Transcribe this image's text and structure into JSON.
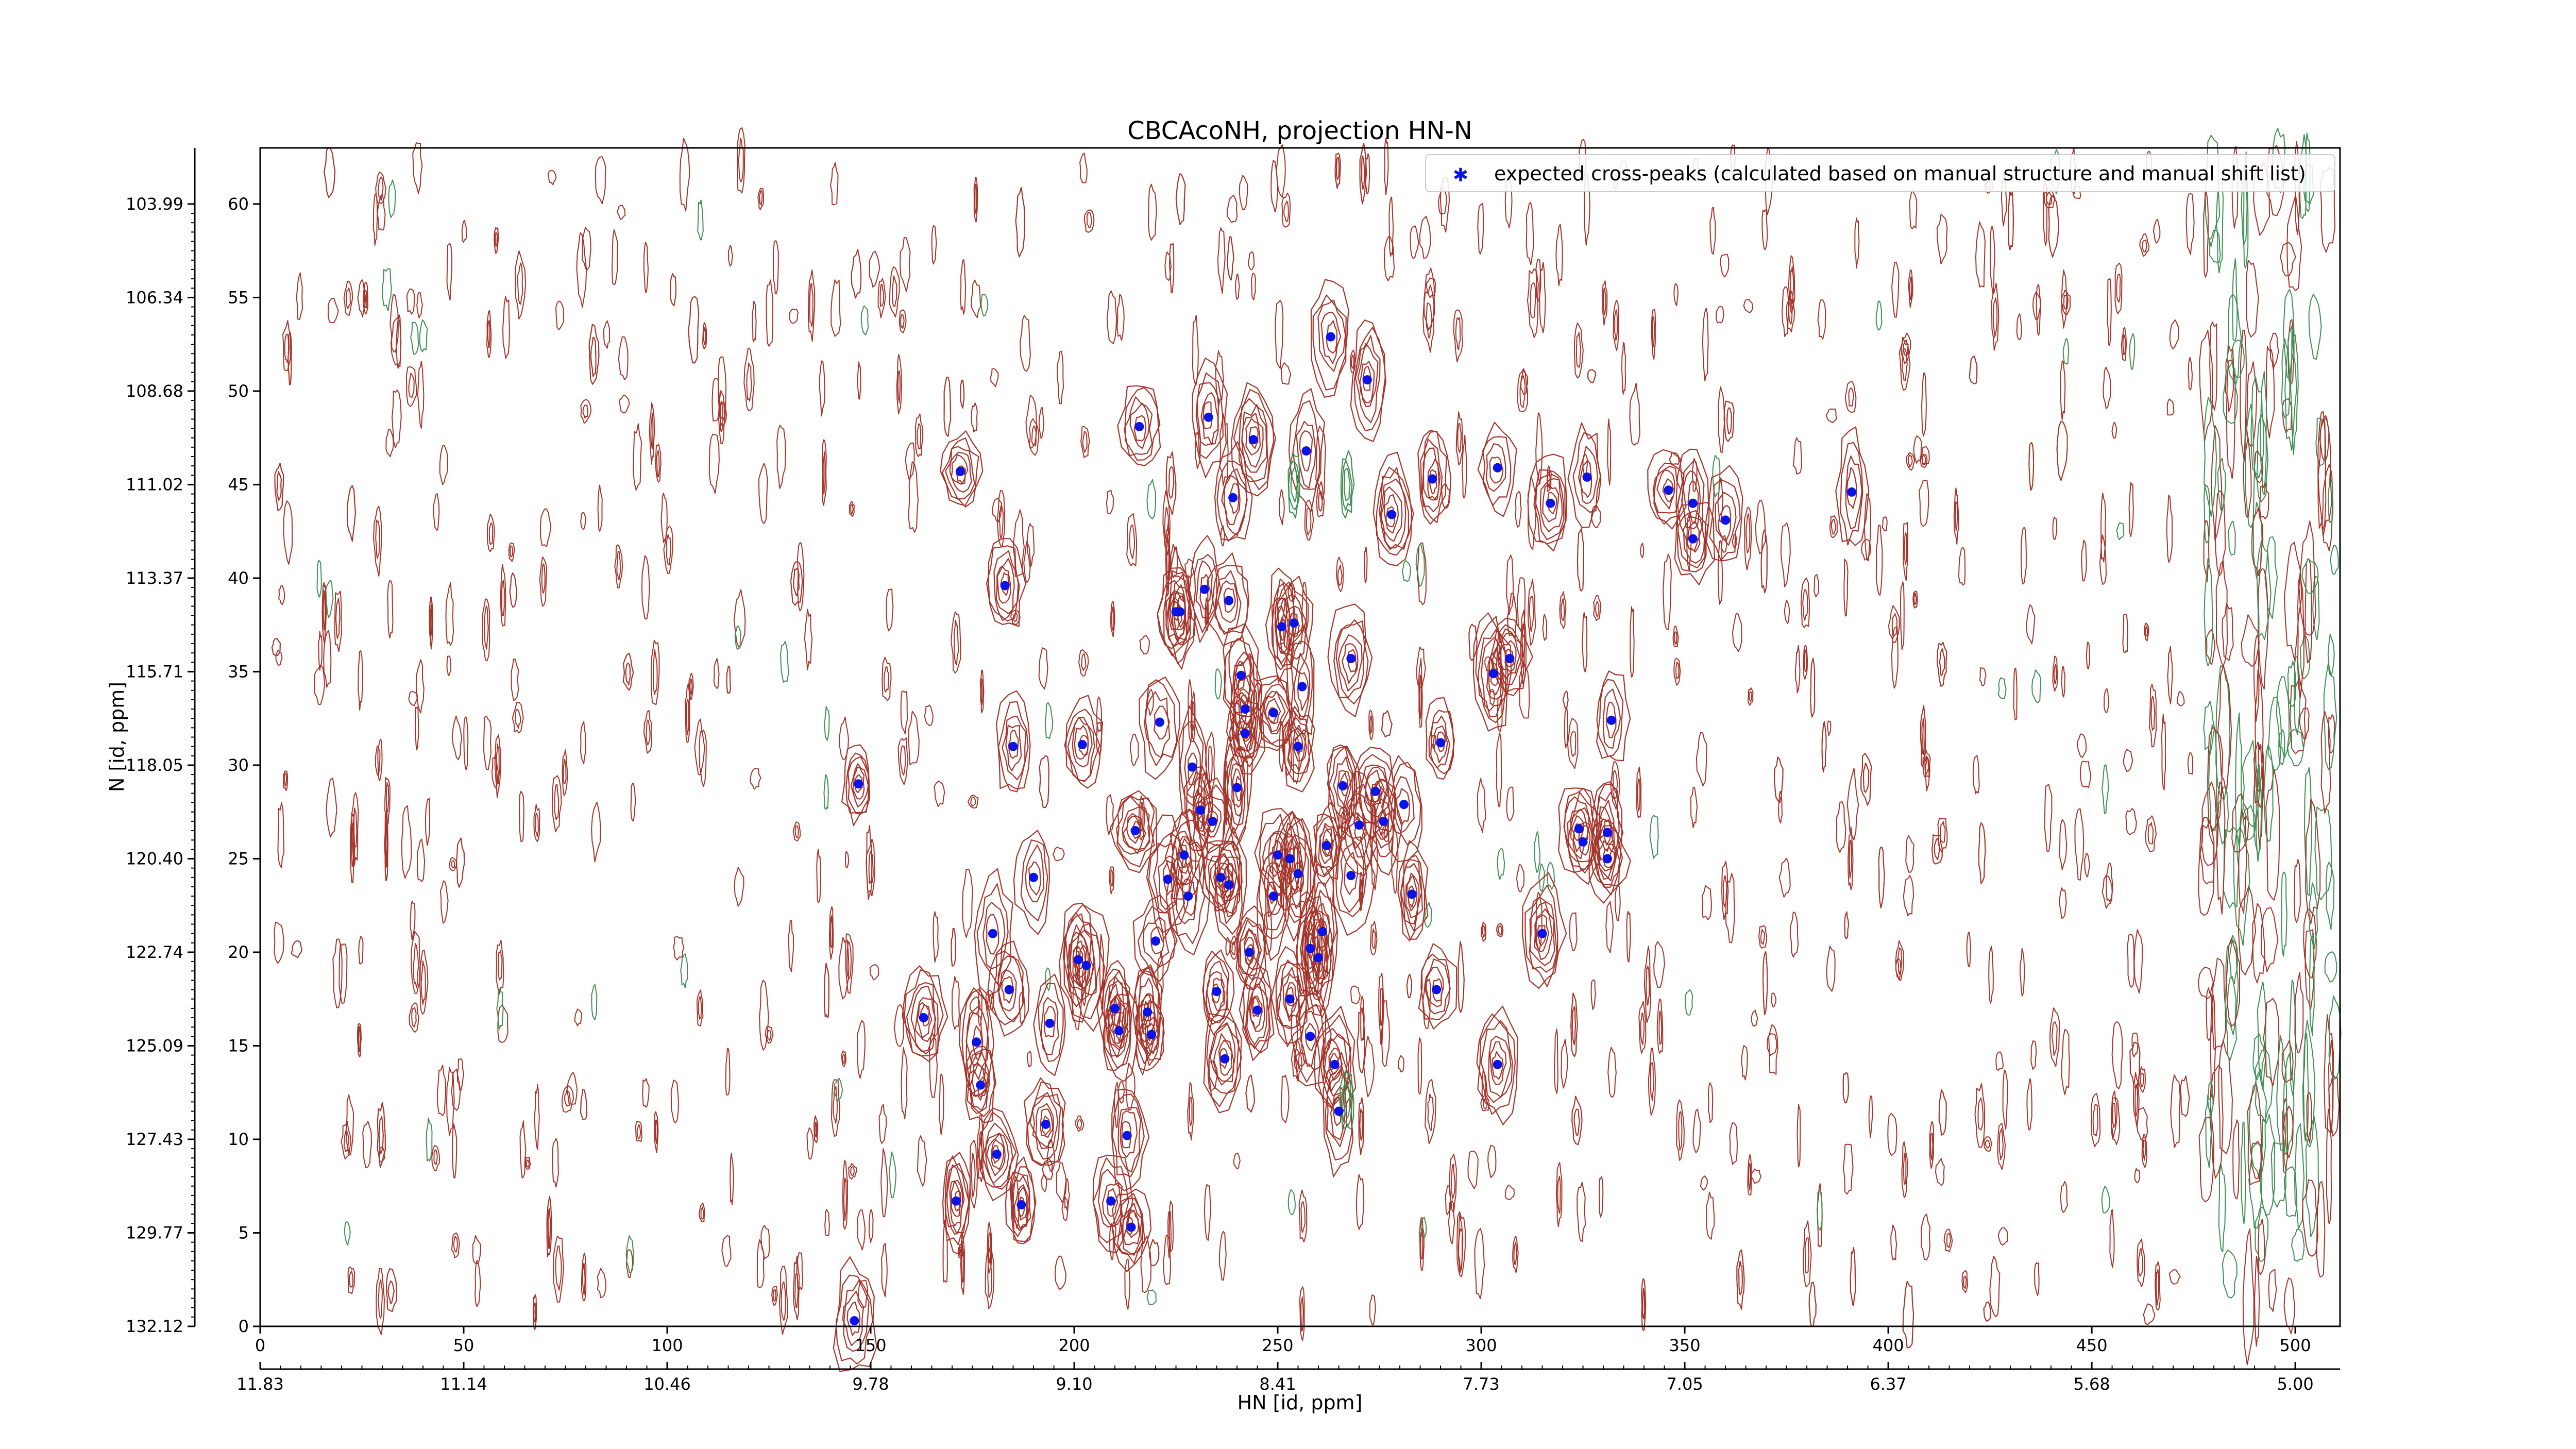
{
  "chart_data": {
    "type": "scatter",
    "title": "CBCAcoNH, projection HN-N",
    "xlabel": "HN [id, ppm]",
    "ylabel": "N [id, ppm]",
    "xlim": [
      0,
      511
    ],
    "ylim": [
      0,
      63
    ],
    "x_ticks": [
      "0",
      "50",
      "100",
      "150",
      "200",
      "250",
      "300",
      "350",
      "400",
      "450",
      "500"
    ],
    "y_ticks": [
      "0",
      "5",
      "10",
      "15",
      "20",
      "25",
      "30",
      "35",
      "40",
      "45",
      "50",
      "55",
      "60"
    ],
    "secondary_x_ticks": [
      "11.83",
      "11.14",
      "10.46",
      "9.78",
      "9.10",
      "8.41",
      "7.73",
      "7.05",
      "6.37",
      "5.68",
      "5.00"
    ],
    "secondary_y_ticks": [
      "132.12",
      "129.77",
      "127.43",
      "125.09",
      "122.74",
      "120.40",
      "118.05",
      "115.71",
      "113.37",
      "111.02",
      "108.68",
      "106.34",
      "103.99"
    ],
    "legend": {
      "label": "expected cross-peaks (calculated based on manual structure and manual shift list)",
      "location": "upper right"
    },
    "colors": {
      "marker": "#0a14e6",
      "contour_positive": "#a5342a",
      "contour_negative": "#3f8f55"
    },
    "series": [
      {
        "name": "expected cross-peaks (calculated based on manual structure and manual shift list)",
        "points": [
          [
            146,
            0.3
          ],
          [
            147,
            29.0
          ],
          [
            163,
            16.5
          ],
          [
            172,
            45.7
          ],
          [
            171,
            6.7
          ],
          [
            176,
            15.2
          ],
          [
            177,
            12.9
          ],
          [
            180,
            21.0
          ],
          [
            181,
            9.2
          ],
          [
            183,
            39.6
          ],
          [
            184,
            18.0
          ],
          [
            185,
            31.0
          ],
          [
            187,
            6.5
          ],
          [
            190,
            24.0
          ],
          [
            193,
            10.8
          ],
          [
            194,
            16.2
          ],
          [
            201,
            19.6
          ],
          [
            202,
            31.1
          ],
          [
            203,
            19.3
          ],
          [
            209,
            6.7
          ],
          [
            210,
            17.0
          ],
          [
            211,
            15.8
          ],
          [
            213,
            10.2
          ],
          [
            214,
            5.3
          ],
          [
            215,
            26.5
          ],
          [
            216,
            48.1
          ],
          [
            218,
            16.8
          ],
          [
            219,
            15.6
          ],
          [
            220,
            20.6
          ],
          [
            221,
            32.3
          ],
          [
            223,
            23.9
          ],
          [
            225,
            38.2
          ],
          [
            226,
            38.2
          ],
          [
            227,
            25.2
          ],
          [
            228,
            23.0
          ],
          [
            229,
            29.9
          ],
          [
            231,
            27.6
          ],
          [
            232,
            39.4
          ],
          [
            233,
            48.6
          ],
          [
            234,
            27.0
          ],
          [
            235,
            17.9
          ],
          [
            236,
            24.0
          ],
          [
            237,
            14.3
          ],
          [
            238,
            23.6
          ],
          [
            238,
            38.8
          ],
          [
            239,
            44.3
          ],
          [
            240,
            28.8
          ],
          [
            241,
            34.8
          ],
          [
            242,
            33.0
          ],
          [
            242,
            31.7
          ],
          [
            243,
            20.0
          ],
          [
            244,
            47.4
          ],
          [
            245,
            16.9
          ],
          [
            249,
            32.8
          ],
          [
            249,
            23.0
          ],
          [
            250,
            25.2
          ],
          [
            251,
            37.4
          ],
          [
            253,
            25.0
          ],
          [
            253,
            17.5
          ],
          [
            254,
            37.6
          ],
          [
            255,
            31.0
          ],
          [
            255,
            24.2
          ],
          [
            256,
            34.2
          ],
          [
            257,
            46.8
          ],
          [
            258,
            20.2
          ],
          [
            258,
            15.5
          ],
          [
            260,
            19.7
          ],
          [
            261,
            21.1
          ],
          [
            262,
            25.7
          ],
          [
            263,
            52.9
          ],
          [
            264,
            14.0
          ],
          [
            265,
            11.5
          ],
          [
            266,
            28.9
          ],
          [
            268,
            35.7
          ],
          [
            268,
            24.1
          ],
          [
            270,
            26.8
          ],
          [
            272,
            50.6
          ],
          [
            274,
            28.6
          ],
          [
            276,
            27.0
          ],
          [
            278,
            43.4
          ],
          [
            281,
            27.9
          ],
          [
            283,
            23.1
          ],
          [
            288,
            45.3
          ],
          [
            289,
            18.0
          ],
          [
            290,
            31.2
          ],
          [
            303,
            34.9
          ],
          [
            304,
            45.9
          ],
          [
            304,
            14.0
          ],
          [
            307,
            35.7
          ],
          [
            315,
            21.0
          ],
          [
            317,
            44.0
          ],
          [
            324,
            26.6
          ],
          [
            325,
            25.9
          ],
          [
            326,
            45.4
          ],
          [
            331,
            26.4
          ],
          [
            331,
            25.0
          ],
          [
            332,
            32.4
          ],
          [
            346,
            44.7
          ],
          [
            352,
            42.1
          ],
          [
            352,
            44.0
          ],
          [
            360,
            43.1
          ],
          [
            391,
            44.6
          ]
        ]
      }
    ]
  }
}
